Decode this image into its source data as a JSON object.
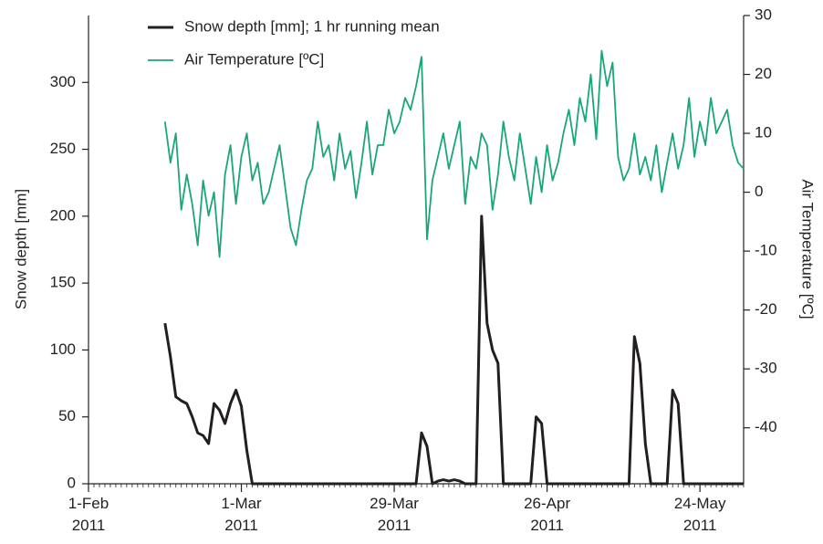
{
  "chart_data": {
    "type": "line",
    "y_label": "Snow depth [mm]",
    "y2_label": "Air Temperature [ºC]",
    "legend": "upper left",
    "x": [
      "2011-02-15",
      "2011-02-16",
      "2011-02-17",
      "2011-02-18",
      "2011-02-19",
      "2011-02-20",
      "2011-02-21",
      "2011-02-22",
      "2011-02-23",
      "2011-02-24",
      "2011-02-25",
      "2011-02-26",
      "2011-02-27",
      "2011-02-28",
      "2011-03-01",
      "2011-03-02",
      "2011-03-03",
      "2011-03-04",
      "2011-03-05",
      "2011-03-06",
      "2011-03-07",
      "2011-03-08",
      "2011-03-09",
      "2011-03-10",
      "2011-03-11",
      "2011-03-12",
      "2011-03-13",
      "2011-03-14",
      "2011-03-15",
      "2011-03-16",
      "2011-03-17",
      "2011-03-18",
      "2011-03-19",
      "2011-03-20",
      "2011-03-21",
      "2011-03-22",
      "2011-03-23",
      "2011-03-24",
      "2011-03-25",
      "2011-03-26",
      "2011-03-27",
      "2011-03-28",
      "2011-03-29",
      "2011-03-30",
      "2011-03-31",
      "2011-04-01",
      "2011-04-02",
      "2011-04-03",
      "2011-04-04",
      "2011-04-05",
      "2011-04-06",
      "2011-04-07",
      "2011-04-08",
      "2011-04-09",
      "2011-04-10",
      "2011-04-11",
      "2011-04-12",
      "2011-04-13",
      "2011-04-14",
      "2011-04-15",
      "2011-04-16",
      "2011-04-17",
      "2011-04-18",
      "2011-04-19",
      "2011-04-20",
      "2011-04-21",
      "2011-04-22",
      "2011-04-23",
      "2011-04-24",
      "2011-04-25",
      "2011-04-26",
      "2011-04-27",
      "2011-04-28",
      "2011-04-29",
      "2011-04-30",
      "2011-05-01",
      "2011-05-02",
      "2011-05-03",
      "2011-05-04",
      "2011-05-05",
      "2011-05-06",
      "2011-05-07",
      "2011-05-08",
      "2011-05-09",
      "2011-05-10",
      "2011-05-11",
      "2011-05-12",
      "2011-05-13",
      "2011-05-14",
      "2011-05-15",
      "2011-05-16",
      "2011-05-17",
      "2011-05-18",
      "2011-05-19",
      "2011-05-20",
      "2011-05-21",
      "2011-05-22",
      "2011-05-23",
      "2011-05-24",
      "2011-05-25",
      "2011-05-26",
      "2011-05-27",
      "2011-05-28",
      "2011-05-29",
      "2011-05-30",
      "2011-05-31",
      "2011-06-01"
    ],
    "series": [
      {
        "name": "Snow depth [mm]; 1 hr running mean",
        "color": "#231f20",
        "axis": "y",
        "values": [
          120,
          95,
          65,
          62,
          60,
          50,
          38,
          36,
          30,
          60,
          55,
          45,
          60,
          70,
          58,
          25,
          0,
          0,
          0,
          0,
          0,
          0,
          0,
          0,
          0,
          0,
          0,
          0,
          0,
          0,
          0,
          0,
          0,
          0,
          0,
          0,
          0,
          0,
          0,
          0,
          0,
          0,
          0,
          0,
          0,
          0,
          0,
          38,
          28,
          0,
          2,
          3,
          2,
          3,
          2,
          0,
          0,
          0,
          200,
          120,
          100,
          90,
          0,
          0,
          0,
          0,
          0,
          0,
          50,
          45,
          0,
          0,
          0,
          0,
          0,
          0,
          0,
          0,
          0,
          0,
          0,
          0,
          0,
          0,
          0,
          0,
          110,
          90,
          30,
          0,
          0,
          0,
          0,
          70,
          60,
          0,
          0,
          0,
          0,
          0,
          0,
          0,
          0,
          0,
          0,
          0,
          0
        ]
      },
      {
        "name": "Air Temperature [ºC]",
        "color": "#1aa67a",
        "axis": "y2",
        "values": [
          12,
          5,
          10,
          -3,
          3,
          -2,
          -9,
          2,
          -4,
          0,
          -11,
          3,
          8,
          -2,
          6,
          10,
          2,
          5,
          -2,
          0,
          4,
          8,
          1,
          -6,
          -9,
          -3,
          2,
          4,
          12,
          6,
          8,
          2,
          10,
          4,
          7,
          -1,
          5,
          12,
          3,
          8,
          8,
          14,
          10,
          12,
          16,
          14,
          18,
          23,
          -8,
          2,
          6,
          10,
          4,
          8,
          12,
          -2,
          6,
          4,
          10,
          8,
          -3,
          3,
          12,
          6,
          2,
          10,
          4,
          -2,
          6,
          0,
          8,
          2,
          5,
          10,
          14,
          8,
          16,
          12,
          20,
          9,
          24,
          18,
          22,
          6,
          2,
          4,
          10,
          3,
          6,
          2,
          8,
          0,
          5,
          10,
          4,
          8,
          16,
          6,
          12,
          8,
          16,
          10,
          12,
          14,
          8,
          5,
          4
        ]
      }
    ],
    "xlim": [
      "2011-02-01",
      "2011-06-01"
    ],
    "xticks": [
      {
        "value": "2011-02-01",
        "label": "1-Feb 2011"
      },
      {
        "value": "2011-03-01",
        "label": "1-Mar 2011"
      },
      {
        "value": "2011-03-29",
        "label": "29-Mar 2011"
      },
      {
        "value": "2011-04-26",
        "label": "26-Apr 2011"
      },
      {
        "value": "2011-05-24",
        "label": "24-May 2011"
      }
    ],
    "ylim": [
      0,
      350
    ],
    "yticks": [
      0,
      50,
      100,
      150,
      200,
      250,
      300
    ],
    "y2lim": [
      -49.5,
      30
    ],
    "y2ticks": [
      30,
      20,
      10,
      0,
      -10,
      -20,
      -30,
      -40
    ]
  }
}
